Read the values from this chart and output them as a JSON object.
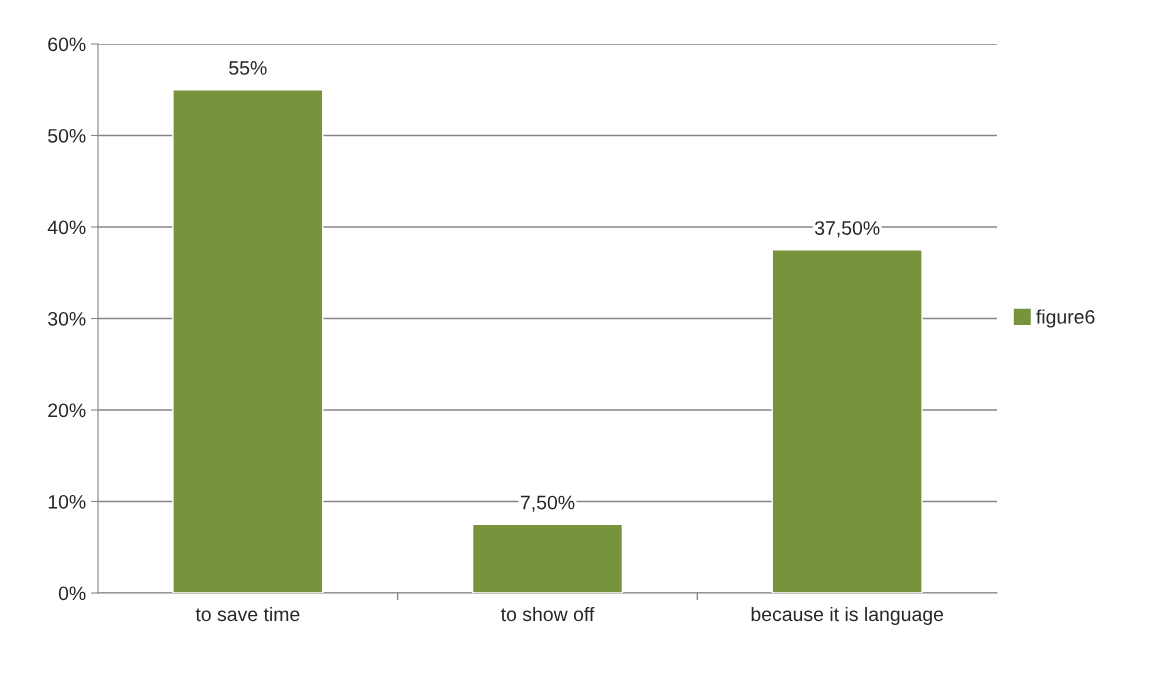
{
  "chart_data": {
    "type": "bar",
    "categories": [
      "to save time",
      "to show off",
      "because it is language"
    ],
    "series": [
      {
        "name": "figure6",
        "color": "#77933c",
        "values": [
          55,
          7.5,
          37.5
        ]
      }
    ],
    "value_labels": [
      "55%",
      "7,50%",
      "37,50%"
    ],
    "ylim": [
      0,
      60
    ],
    "yticks": [
      {
        "value": 0,
        "label": "0%"
      },
      {
        "value": 10,
        "label": "10%"
      },
      {
        "value": 20,
        "label": "20%"
      },
      {
        "value": 30,
        "label": "30%"
      },
      {
        "value": 40,
        "label": "40%"
      },
      {
        "value": 50,
        "label": "50%"
      },
      {
        "value": 60,
        "label": "60%"
      }
    ],
    "grid": "y",
    "legend": "right"
  }
}
